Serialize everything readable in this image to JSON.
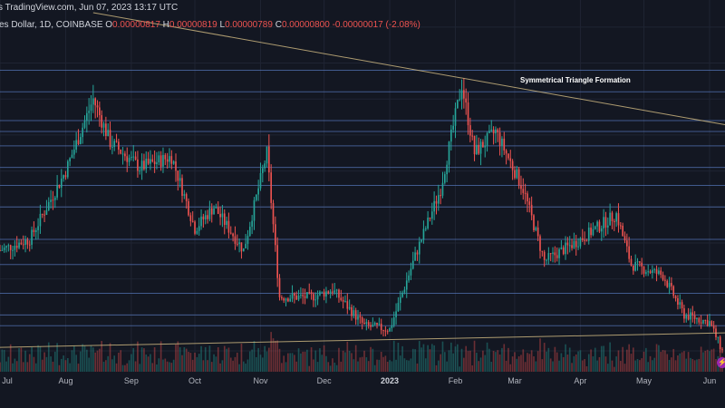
{
  "header": {
    "source_text": "s TradingView.com,  Jun 07, 2023 13:17 UTC",
    "symbol_text": "es Dollar, 1D, COINBASE",
    "ohlc": {
      "o_label": "O",
      "o_value": "0.00000817",
      "h_label": "H",
      "h_value": "0.00000819",
      "l_label": "L",
      "l_value": "0.00000789",
      "c_label": "C",
      "c_value": "0.00000800",
      "change": "-0.00000017 (-2.08%)"
    }
  },
  "annotation": "Symmetrical Triangle Formation",
  "badge_text": "⚡",
  "colors": {
    "background": "#131722",
    "up": "#26a69a",
    "down": "#ef5350",
    "level_line": "#5b7fc7",
    "trendline": "#c9b37e"
  },
  "chart_data": {
    "type": "candlestick",
    "title": "",
    "x_range": [
      "2022-07-01",
      "2023-06-07"
    ],
    "x_ticks": [
      "Jul",
      "Aug",
      "Sep",
      "Oct",
      "Nov",
      "Dec",
      "2023",
      "Feb",
      "Mar",
      "Apr",
      "May",
      "Jun"
    ],
    "y_range": [
      7.8e-06,
      1.75e-05
    ],
    "approx_close_path": [
      {
        "date": "2022-07-01",
        "close": 1.08e-05
      },
      {
        "date": "2022-07-15",
        "close": 1.11e-05
      },
      {
        "date": "2022-08-01",
        "close": 1.3e-05
      },
      {
        "date": "2022-08-14",
        "close": 1.5e-05
      },
      {
        "date": "2022-08-22",
        "close": 1.38e-05
      },
      {
        "date": "2022-09-05",
        "close": 1.31e-05
      },
      {
        "date": "2022-09-20",
        "close": 1.34e-05
      },
      {
        "date": "2022-10-01",
        "close": 1.14e-05
      },
      {
        "date": "2022-10-10",
        "close": 1.2e-05
      },
      {
        "date": "2022-10-24",
        "close": 1.08e-05
      },
      {
        "date": "2022-11-04",
        "close": 1.35e-05
      },
      {
        "date": "2022-11-10",
        "close": 9.5e-06
      },
      {
        "date": "2022-11-25",
        "close": 9.5e-06
      },
      {
        "date": "2022-12-05",
        "close": 9.7e-06
      },
      {
        "date": "2022-12-20",
        "close": 8.7e-06
      },
      {
        "date": "2023-01-01",
        "close": 8.6e-06
      },
      {
        "date": "2023-01-14",
        "close": 1.08e-05
      },
      {
        "date": "2023-01-25",
        "close": 1.25e-05
      },
      {
        "date": "2023-02-04",
        "close": 1.54e-05
      },
      {
        "date": "2023-02-10",
        "close": 1.35e-05
      },
      {
        "date": "2023-02-20",
        "close": 1.41e-05
      },
      {
        "date": "2023-03-05",
        "close": 1.25e-05
      },
      {
        "date": "2023-03-15",
        "close": 1.05e-05
      },
      {
        "date": "2023-04-01",
        "close": 1.11e-05
      },
      {
        "date": "2023-04-18",
        "close": 1.18e-05
      },
      {
        "date": "2023-04-25",
        "close": 1.04e-05
      },
      {
        "date": "2023-05-10",
        "close": 1.01e-05
      },
      {
        "date": "2023-05-20",
        "close": 9e-06
      },
      {
        "date": "2023-06-01",
        "close": 8.8e-06
      },
      {
        "date": "2023-06-07",
        "close": 8e-06
      }
    ],
    "horizontal_levels": [
      1.58e-05,
      1.52e-05,
      1.44e-05,
      1.41e-05,
      1.37e-05,
      1.31e-05,
      1.26e-05,
      1.2e-05,
      1.11e-05,
      1.04e-05,
      9.6e-06,
      9e-06,
      8.7e-06
    ],
    "trendlines": [
      {
        "from": {
          "date": "2022-08-14",
          "value": 1.74e-05
        },
        "to": {
          "date": "2023-06-07",
          "value": 1.43e-05
        }
      },
      {
        "from": {
          "date": "2022-07-01",
          "value": 8.1e-06
        },
        "to": {
          "date": "2023-06-07",
          "value": 8.5e-06
        }
      }
    ],
    "grid": true,
    "volume_pane": true
  }
}
